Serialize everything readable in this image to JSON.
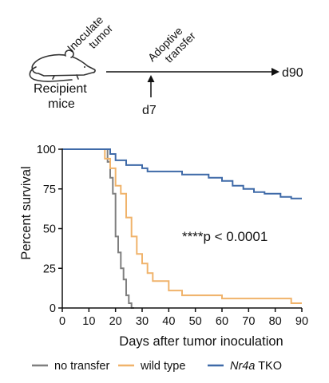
{
  "schematic": {
    "recipient_label_line1": "Recipient",
    "recipient_label_line2": "mice",
    "inoculate_line1": "Inoculate",
    "inoculate_line2": "tumor",
    "adoptive_line1": "Adoptive",
    "adoptive_line2": "transfer",
    "transfer_day": "d7",
    "end_day": "d90"
  },
  "colors": {
    "no_transfer": "#7f7f7f",
    "wild_type": "#f0b36b",
    "nr4a_tko": "#3f6aa8",
    "axis": "#111111"
  },
  "chart_data": {
    "type": "line",
    "step": true,
    "xlabel": "Days after tumor inoculation",
    "ylabel": "Percent survival",
    "xlim": [
      0,
      90
    ],
    "ylim": [
      0,
      100
    ],
    "xticks": [
      0,
      10,
      20,
      30,
      40,
      50,
      60,
      70,
      80,
      90
    ],
    "yticks": [
      0,
      25,
      50,
      75,
      100
    ],
    "grid": false,
    "legend_position": "bottom",
    "annotation": "****p < 0.0001",
    "series": [
      {
        "name_italic": "",
        "name": "no transfer",
        "color_key": "no_transfer",
        "points": [
          [
            0,
            100
          ],
          [
            17,
            100
          ],
          [
            17,
            92
          ],
          [
            18,
            92
          ],
          [
            18,
            82
          ],
          [
            19,
            82
          ],
          [
            19,
            72
          ],
          [
            20,
            72
          ],
          [
            20,
            45
          ],
          [
            21,
            45
          ],
          [
            21,
            35
          ],
          [
            22,
            35
          ],
          [
            22,
            25
          ],
          [
            23,
            25
          ],
          [
            23,
            18
          ],
          [
            24,
            18
          ],
          [
            24,
            8
          ],
          [
            25,
            8
          ],
          [
            25,
            3
          ],
          [
            26,
            3
          ],
          [
            26,
            0
          ],
          [
            27,
            0
          ]
        ]
      },
      {
        "name_italic": "",
        "name": "wild type",
        "color_key": "wild_type",
        "points": [
          [
            0,
            100
          ],
          [
            16,
            100
          ],
          [
            16,
            94
          ],
          [
            18,
            94
          ],
          [
            18,
            88
          ],
          [
            20,
            88
          ],
          [
            20,
            77
          ],
          [
            22,
            77
          ],
          [
            22,
            72
          ],
          [
            24,
            72
          ],
          [
            24,
            57
          ],
          [
            26,
            57
          ],
          [
            26,
            45
          ],
          [
            28,
            45
          ],
          [
            28,
            34
          ],
          [
            30,
            34
          ],
          [
            30,
            28
          ],
          [
            32,
            28
          ],
          [
            32,
            22
          ],
          [
            34,
            22
          ],
          [
            34,
            17
          ],
          [
            40,
            17
          ],
          [
            40,
            11
          ],
          [
            45,
            11
          ],
          [
            45,
            8
          ],
          [
            60,
            8
          ],
          [
            60,
            6
          ],
          [
            86,
            6
          ],
          [
            86,
            3
          ],
          [
            90,
            3
          ]
        ]
      },
      {
        "name_italic": "Nr4a",
        "name": " TKO",
        "color_key": "nr4a_tko",
        "points": [
          [
            0,
            100
          ],
          [
            18,
            100
          ],
          [
            18,
            97
          ],
          [
            20,
            97
          ],
          [
            20,
            93
          ],
          [
            24,
            93
          ],
          [
            24,
            90
          ],
          [
            30,
            90
          ],
          [
            30,
            88
          ],
          [
            32,
            88
          ],
          [
            32,
            86
          ],
          [
            45,
            86
          ],
          [
            45,
            84
          ],
          [
            55,
            84
          ],
          [
            55,
            82
          ],
          [
            60,
            82
          ],
          [
            60,
            80
          ],
          [
            64,
            80
          ],
          [
            64,
            77
          ],
          [
            68,
            77
          ],
          [
            68,
            75
          ],
          [
            72,
            75
          ],
          [
            72,
            73
          ],
          [
            76,
            73
          ],
          [
            76,
            72
          ],
          [
            82,
            72
          ],
          [
            82,
            70
          ],
          [
            86,
            70
          ],
          [
            86,
            69
          ],
          [
            90,
            69
          ]
        ]
      }
    ]
  }
}
